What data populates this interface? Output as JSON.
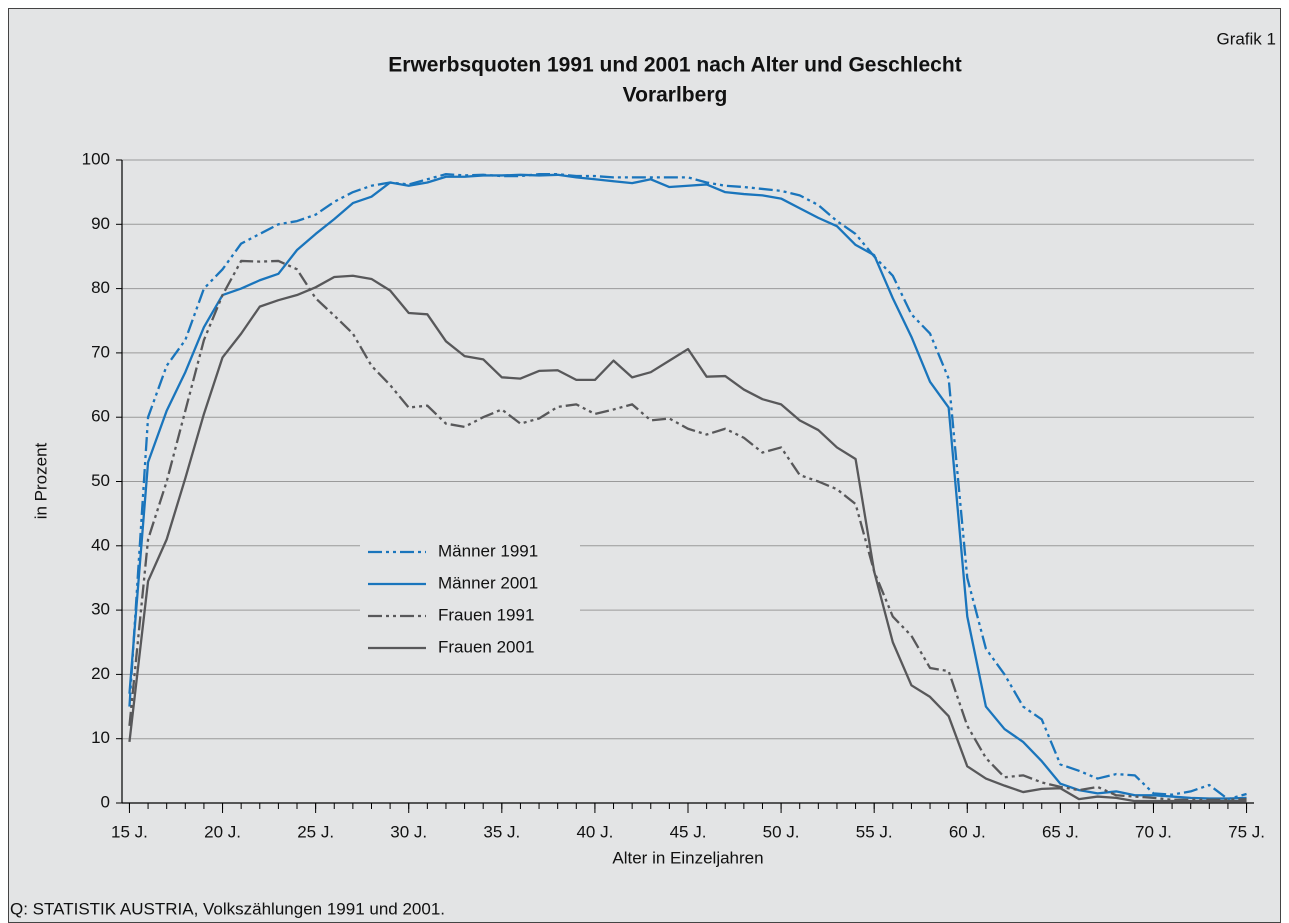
{
  "chart_data": {
    "type": "line",
    "label": "Grafik 1",
    "title": "Erwerbsquoten 1991 und 2001 nach Alter und Geschlecht",
    "subtitle": "Vorarlberg",
    "ylabel": "in Prozent",
    "xlabel": "Alter in Einzeljahren",
    "source": "Q: STATISTIK AUSTRIA, Volkszählungen 1991 und 2001.",
    "x": [
      15,
      16,
      17,
      18,
      19,
      20,
      21,
      22,
      23,
      24,
      25,
      26,
      27,
      28,
      29,
      30,
      31,
      32,
      33,
      34,
      35,
      36,
      37,
      38,
      39,
      40,
      41,
      42,
      43,
      44,
      45,
      46,
      47,
      48,
      49,
      50,
      51,
      52,
      53,
      54,
      55,
      56,
      57,
      58,
      59,
      60,
      61,
      62,
      63,
      64,
      65,
      66,
      67,
      68,
      69,
      70,
      71,
      72,
      73,
      74,
      75
    ],
    "xlim": [
      14.6,
      75.4
    ],
    "xticks": [
      {
        "value": 15,
        "label": "15 J."
      },
      {
        "value": 20,
        "label": "20 J."
      },
      {
        "value": 25,
        "label": "25 J."
      },
      {
        "value": 30,
        "label": "30 J."
      },
      {
        "value": 35,
        "label": "35 J."
      },
      {
        "value": 40,
        "label": "40 J."
      },
      {
        "value": 45,
        "label": "45 J."
      },
      {
        "value": 50,
        "label": "50 J."
      },
      {
        "value": 55,
        "label": "55 J."
      },
      {
        "value": 60,
        "label": "60 J."
      },
      {
        "value": 65,
        "label": "65 J."
      },
      {
        "value": 70,
        "label": "70 J."
      },
      {
        "value": 75,
        "label": "75 J."
      }
    ],
    "ylim": [
      0,
      100
    ],
    "yticks": [
      0,
      10,
      20,
      30,
      40,
      50,
      60,
      70,
      80,
      90,
      100
    ],
    "grid": true,
    "legend_position": "center-left",
    "series": [
      {
        "name": "Männer 1991",
        "color": "#1a75bc",
        "style": "dash-dot-dot",
        "values": [
          15,
          60,
          68,
          72,
          80,
          83,
          87,
          88.5,
          90,
          90.5,
          91.5,
          93.5,
          95,
          96,
          96.5,
          96.2,
          97,
          97.8,
          97.6,
          97.7,
          97.5,
          97.5,
          97.8,
          97.8,
          97.5,
          97.5,
          97.3,
          97.3,
          97.3,
          97.3,
          97.3,
          96.5,
          96,
          95.8,
          95.5,
          95.2,
          94.5,
          93,
          90.5,
          88.5,
          85,
          82,
          76,
          73,
          66,
          35,
          24,
          20,
          15,
          13,
          6,
          5,
          3.8,
          4.5,
          4.3,
          1.5,
          1.3,
          1.8,
          2.8,
          0.6,
          1.4
        ]
      },
      {
        "name": "Männer 2001",
        "color": "#1a75bc",
        "style": "solid",
        "values": [
          17,
          53,
          61,
          67,
          74,
          79,
          80,
          81.3,
          82.3,
          86,
          88.5,
          90.8,
          93.3,
          94.3,
          96.5,
          96,
          96.5,
          97.4,
          97.4,
          97.6,
          97.6,
          97.7,
          97.6,
          97.7,
          97.3,
          97,
          96.7,
          96.4,
          97,
          95.8,
          96,
          96.2,
          95,
          94.7,
          94.5,
          94,
          92.5,
          91,
          89.7,
          86.8,
          85.2,
          78.5,
          72.5,
          65.5,
          61.5,
          29,
          15,
          11.5,
          9.5,
          6.5,
          3,
          2,
          1.5,
          1.8,
          1.2,
          1.2,
          1,
          0.8,
          0.7,
          0.7,
          0.8
        ]
      },
      {
        "name": "Frauen 1991",
        "color": "#58585a",
        "style": "dash-dot-dot",
        "values": [
          12,
          41,
          50,
          61,
          72,
          79,
          84.3,
          84.2,
          84.3,
          83,
          78.5,
          75.8,
          73,
          68,
          65,
          61.5,
          61.8,
          59,
          58.5,
          60,
          61.2,
          59,
          59.8,
          61.6,
          62,
          60.5,
          61.2,
          62,
          59.5,
          59.8,
          58.2,
          57.3,
          58.2,
          56.8,
          54.5,
          55.3,
          51,
          50,
          48.8,
          46.5,
          36,
          29,
          26,
          21,
          20.5,
          12,
          7,
          4,
          4.3,
          3.2,
          2.5,
          2,
          2.5,
          1.2,
          1,
          0.8,
          0.5,
          0.5,
          0.5,
          0.5,
          0.6
        ]
      },
      {
        "name": "Frauen 2001",
        "color": "#58585a",
        "style": "solid",
        "values": [
          9.5,
          34.5,
          41,
          50.5,
          60.5,
          69.3,
          73,
          77.2,
          78.2,
          79,
          80.2,
          81.8,
          82,
          81.5,
          79.7,
          76.2,
          76,
          71.8,
          69.5,
          69,
          66.2,
          66,
          67.2,
          67.3,
          65.8,
          65.8,
          68.8,
          66.2,
          67,
          68.8,
          70.6,
          66.3,
          66.4,
          64.3,
          62.8,
          62,
          59.5,
          58,
          55.3,
          53.5,
          36,
          25,
          18.3,
          16.5,
          13.5,
          5.7,
          3.8,
          2.7,
          1.7,
          2.2,
          2.3,
          0.6,
          1,
          0.8,
          0.3,
          0.3,
          0.3,
          0.3,
          0.3,
          0.3,
          0.3
        ]
      }
    ]
  }
}
